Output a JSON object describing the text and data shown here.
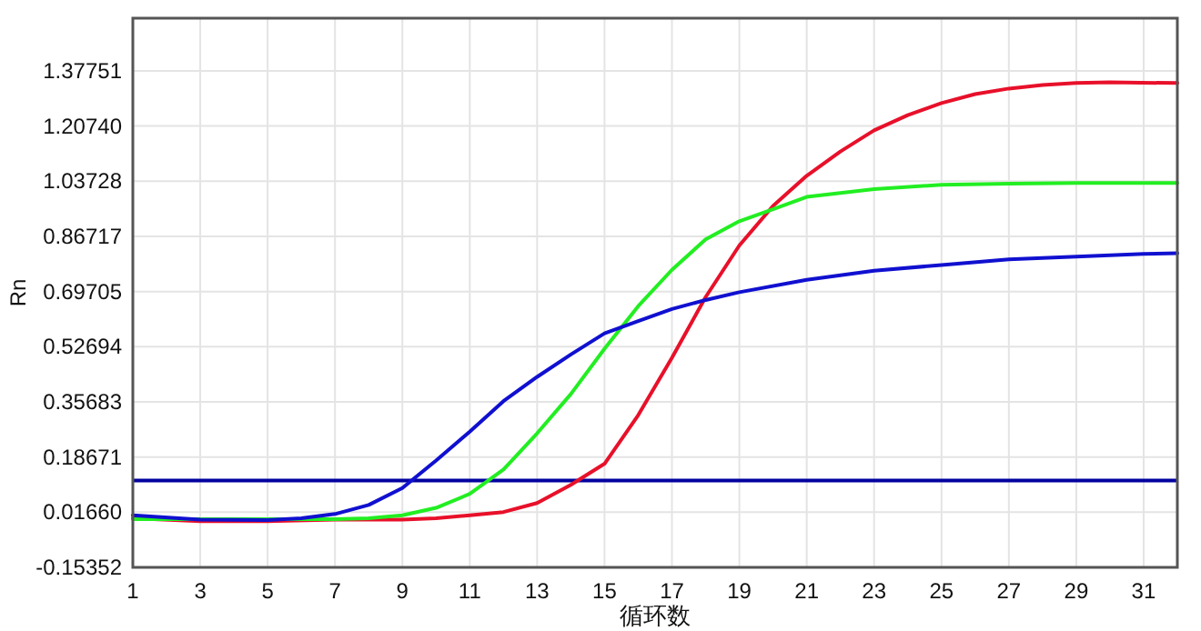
{
  "chart_data": {
    "type": "line",
    "xlabel": "循环数",
    "ylabel": "Rn",
    "xlim": [
      1,
      32
    ],
    "ylim": [
      -0.15352,
      1.54
    ],
    "xticks": [
      1,
      3,
      5,
      7,
      9,
      11,
      13,
      15,
      17,
      19,
      21,
      23,
      25,
      27,
      29,
      31
    ],
    "yticks": [
      -0.15352,
      {
        "value": 0.0166,
        "label": "0.01660"
      },
      0.18671,
      0.35683,
      0.52694,
      0.69705,
      0.86717,
      1.03728,
      {
        "value": 1.2074,
        "label": "1.20740"
      },
      1.37751
    ],
    "grid": true,
    "marker": "none",
    "line_style": "solid",
    "series": [
      {
        "color": "#e8102a",
        "x": [
          1,
          3,
          5,
          7,
          9,
          10,
          11,
          12,
          13,
          14,
          15,
          16,
          17,
          18,
          19,
          20,
          21,
          22,
          23,
          24,
          25,
          26,
          27,
          28,
          29,
          30,
          32
        ],
        "values": [
          -0.002,
          -0.011,
          -0.011,
          -0.006,
          -0.006,
          -0.002,
          0.007,
          0.017,
          0.045,
          0.101,
          0.166,
          0.316,
          0.493,
          0.68,
          0.839,
          0.961,
          1.054,
          1.129,
          1.194,
          1.241,
          1.278,
          1.306,
          1.323,
          1.334,
          1.34,
          1.342,
          1.34
        ]
      },
      {
        "color": "#22ee22",
        "x": [
          1,
          3,
          5,
          7,
          8,
          9,
          10,
          11,
          12,
          13,
          14,
          15,
          16,
          17,
          18,
          19,
          20,
          21,
          23,
          25,
          27,
          29,
          32
        ],
        "values": [
          -0.005,
          -0.005,
          -0.005,
          -0.005,
          -0.002,
          0.007,
          0.03,
          0.073,
          0.148,
          0.26,
          0.381,
          0.521,
          0.652,
          0.764,
          0.858,
          0.914,
          0.951,
          0.989,
          1.013,
          1.026,
          1.03,
          1.032,
          1.032
        ]
      },
      {
        "color": "#1010d0",
        "x": [
          1,
          3,
          5,
          6,
          7,
          8,
          9,
          10,
          11,
          12,
          13,
          14,
          15,
          16,
          17,
          18,
          19,
          21,
          23,
          25,
          27,
          29,
          31,
          32
        ],
        "values": [
          0.007,
          -0.006,
          -0.008,
          -0.002,
          0.011,
          0.039,
          0.091,
          0.176,
          0.265,
          0.359,
          0.434,
          0.503,
          0.568,
          0.606,
          0.643,
          0.671,
          0.695,
          0.733,
          0.761,
          0.779,
          0.796,
          0.805,
          0.813,
          0.815
        ]
      }
    ],
    "ref_lines": [
      {
        "axis": "y",
        "value": 0.114,
        "color": "#0000a0"
      }
    ]
  }
}
